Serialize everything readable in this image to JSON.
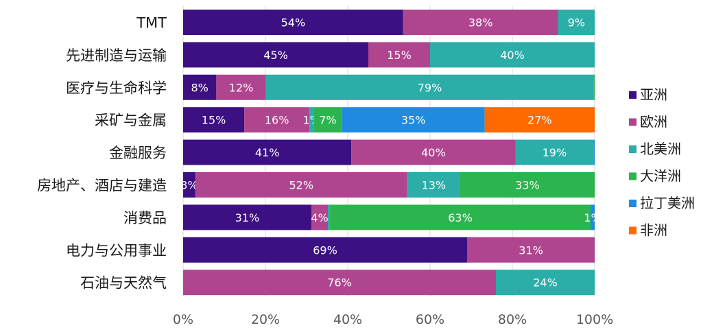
{
  "chart_data": {
    "type": "bar",
    "orientation": "horizontal",
    "stacked": "percent",
    "categories": [
      "TMT",
      "先进制造与运输",
      "医疗与生命科学",
      "采矿与金属",
      "金融服务",
      "房地产、酒店与建造",
      "消费品",
      "电力与公用事业",
      "石油与天然气"
    ],
    "series": [
      {
        "name": "亚洲",
        "color": "#3c1082",
        "values": [
          54,
          45,
          8,
          15,
          41,
          3,
          31,
          69,
          0
        ],
        "labels": [
          "54%",
          "45%",
          "8%",
          "15%",
          "41%",
          "3%",
          "31%",
          "69%",
          ""
        ]
      },
      {
        "name": "欧洲",
        "color": "#b0458f",
        "values": [
          38,
          15,
          12,
          16,
          40,
          52,
          4,
          31,
          76
        ],
        "labels": [
          "38%",
          "15%",
          "12%",
          "16%",
          "40%",
          "52%",
          "4%",
          "31%",
          "76%"
        ]
      },
      {
        "name": "北美洲",
        "color": "#2bada8",
        "values": [
          9,
          40,
          79,
          1,
          19,
          13,
          0.5,
          0,
          24
        ],
        "labels": [
          "9%",
          "40%",
          "79%",
          "1%",
          "19%",
          "13%",
          "",
          "",
          "24%"
        ]
      },
      {
        "name": "大洋洲",
        "color": "#2cb44e",
        "values": [
          0,
          0,
          0.3,
          7,
          0,
          33,
          63,
          0,
          0
        ],
        "labels": [
          "",
          "",
          "",
          "7%",
          "",
          "33%",
          "63%",
          "",
          ""
        ]
      },
      {
        "name": "拉丁美洲",
        "color": "#1f8be0",
        "values": [
          0,
          0,
          0,
          35,
          0.3,
          0,
          1,
          0,
          0
        ],
        "labels": [
          "",
          "",
          "",
          "35%",
          "",
          "",
          "1%",
          "",
          ""
        ]
      },
      {
        "name": "非洲",
        "color": "#ff6a00",
        "values": [
          0,
          0,
          0,
          27,
          0,
          0,
          0,
          0,
          0
        ],
        "labels": [
          "",
          "",
          "",
          "27%",
          "",
          "",
          "",
          "",
          ""
        ]
      }
    ],
    "x_ticks": [
      "0%",
      "20%",
      "40%",
      "60%",
      "80%",
      "100%"
    ],
    "xlim": [
      0,
      100
    ],
    "grid": true,
    "legend_position": "right"
  }
}
